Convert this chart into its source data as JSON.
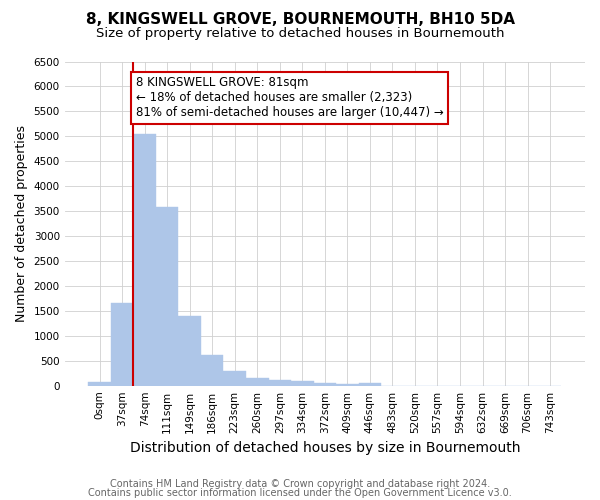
{
  "title": "8, KINGSWELL GROVE, BOURNEMOUTH, BH10 5DA",
  "subtitle": "Size of property relative to detached houses in Bournemouth",
  "xlabel": "Distribution of detached houses by size in Bournemouth",
  "ylabel": "Number of detached properties",
  "footnote1": "Contains HM Land Registry data © Crown copyright and database right 2024.",
  "footnote2": "Contains public sector information licensed under the Open Government Licence v3.0.",
  "bar_labels": [
    "0sqm",
    "37sqm",
    "74sqm",
    "111sqm",
    "149sqm",
    "186sqm",
    "223sqm",
    "260sqm",
    "297sqm",
    "334sqm",
    "372sqm",
    "409sqm",
    "446sqm",
    "483sqm",
    "520sqm",
    "557sqm",
    "594sqm",
    "632sqm",
    "669sqm",
    "706sqm",
    "743sqm"
  ],
  "bar_values": [
    75,
    1650,
    5050,
    3580,
    1400,
    620,
    300,
    155,
    120,
    90,
    50,
    35,
    60,
    0,
    0,
    0,
    0,
    0,
    0,
    0,
    0
  ],
  "bar_color": "#aec6e8",
  "bar_edge_color": "#aec6e8",
  "grid_color": "#d0d0d0",
  "annotation_text": "8 KINGSWELL GROVE: 81sqm\n← 18% of detached houses are smaller (2,323)\n81% of semi-detached houses are larger (10,447) →",
  "annotation_box_color": "#ffffff",
  "annotation_border_color": "#cc0000",
  "vline_color": "#cc0000",
  "vline_x_index": 2,
  "ylim": [
    0,
    6500
  ],
  "yticks": [
    0,
    500,
    1000,
    1500,
    2000,
    2500,
    3000,
    3500,
    4000,
    4500,
    5000,
    5500,
    6000,
    6500
  ],
  "background_color": "#ffffff",
  "title_fontsize": 11,
  "subtitle_fontsize": 9.5,
  "xlabel_fontsize": 10,
  "ylabel_fontsize": 9,
  "tick_fontsize": 7.5,
  "annotation_fontsize": 8.5,
  "footnote_fontsize": 7
}
